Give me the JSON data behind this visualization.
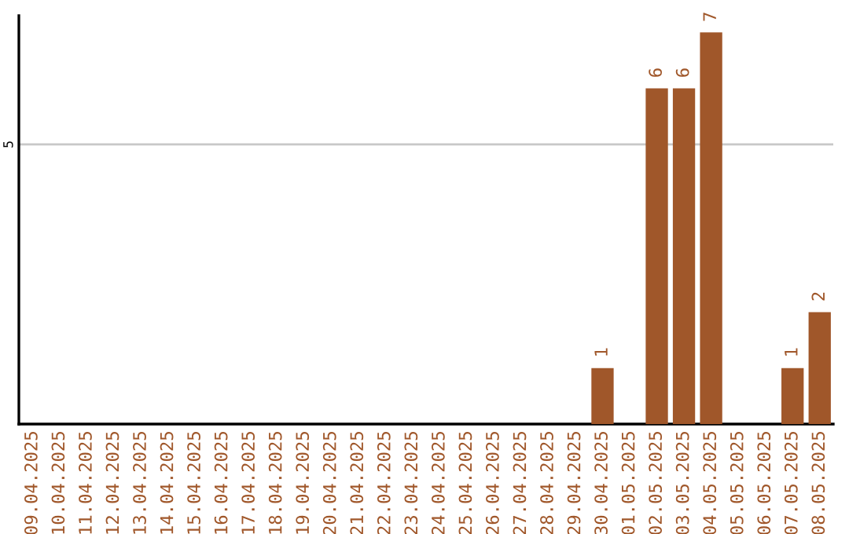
{
  "chart_data": {
    "type": "bar",
    "categories": [
      "09.04.2025",
      "10.04.2025",
      "11.04.2025",
      "12.04.2025",
      "13.04.2025",
      "14.04.2025",
      "15.04.2025",
      "16.04.2025",
      "17.04.2025",
      "18.04.2025",
      "19.04.2025",
      "20.04.2025",
      "21.04.2025",
      "22.04.2025",
      "23.04.2025",
      "24.04.2025",
      "25.04.2025",
      "26.04.2025",
      "27.04.2025",
      "28.04.2025",
      "29.04.2025",
      "30.04.2025",
      "01.05.2025",
      "02.05.2025",
      "03.05.2025",
      "04.05.2025",
      "05.05.2025",
      "06.05.2025",
      "07.05.2025",
      "08.05.2025"
    ],
    "values": [
      null,
      null,
      null,
      null,
      null,
      null,
      null,
      null,
      null,
      null,
      null,
      null,
      null,
      null,
      null,
      null,
      null,
      null,
      null,
      null,
      null,
      1,
      null,
      6,
      6,
      7,
      null,
      null,
      1,
      2
    ],
    "data_labels": true,
    "color": "#a0572a",
    "ylim": [
      0,
      7.3
    ],
    "ref_lines": [
      {
        "axis": "y",
        "value": 5,
        "label": "5",
        "color": "#c8c8c8"
      }
    ]
  }
}
